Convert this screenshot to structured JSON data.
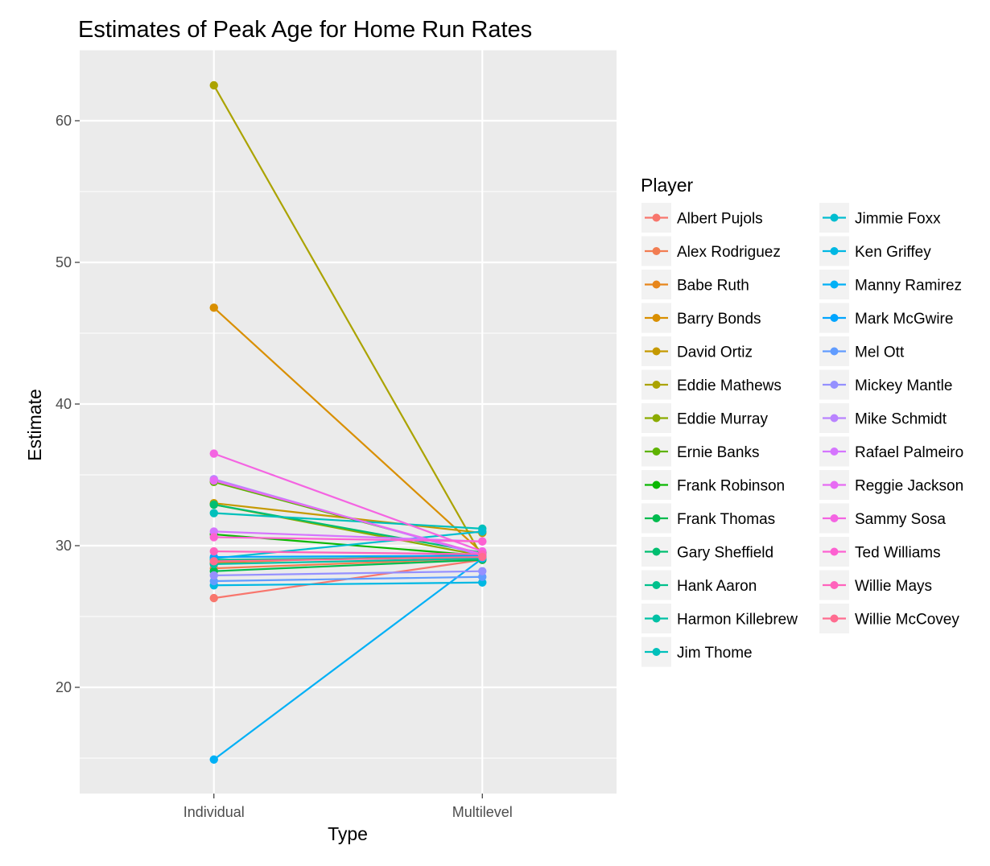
{
  "chart_data": {
    "type": "line",
    "title": "Estimates of Peak Age for Home Run Rates",
    "xlabel": "Type",
    "ylabel": "Estimate",
    "categories": [
      "Individual",
      "Multilevel"
    ],
    "ylim": [
      12.5,
      65
    ],
    "yticks": [
      20,
      30,
      40,
      50,
      60
    ],
    "grid": true,
    "background": "#ebebeb",
    "legend": {
      "title": "Player",
      "placement": "right",
      "columns": 2
    },
    "series": [
      {
        "name": "Albert Pujols",
        "color": "#F8766D",
        "values": [
          26.3,
          29.0
        ]
      },
      {
        "name": "Alex Rodriguez",
        "color": "#F27D52",
        "values": [
          28.4,
          29.1
        ]
      },
      {
        "name": "Babe Ruth",
        "color": "#E7861B",
        "values": [
          28.8,
          29.4
        ]
      },
      {
        "name": "Barry Bonds",
        "color": "#D98F00",
        "values": [
          46.8,
          29.5
        ]
      },
      {
        "name": "David Ortiz",
        "color": "#C59900",
        "values": [
          33.0,
          30.9
        ]
      },
      {
        "name": "Eddie Mathews",
        "color": "#ABA300",
        "values": [
          62.5,
          29.2
        ]
      },
      {
        "name": "Eddie Murray",
        "color": "#8BAB00",
        "values": [
          32.9,
          29.3
        ]
      },
      {
        "name": "Ernie Banks",
        "color": "#5EB300",
        "values": [
          34.5,
          29.4
        ]
      },
      {
        "name": "Frank Robinson",
        "color": "#0BB702",
        "values": [
          30.8,
          29.3
        ]
      },
      {
        "name": "Frank Thomas",
        "color": "#00BB4E",
        "values": [
          28.2,
          29.0
        ]
      },
      {
        "name": "Gary Sheffield",
        "color": "#00BE70",
        "values": [
          32.9,
          29.5
        ]
      },
      {
        "name": "Hank Aaron",
        "color": "#00C08C",
        "values": [
          29.0,
          29.2
        ]
      },
      {
        "name": "Harmon Killebrew",
        "color": "#00C1A5",
        "values": [
          28.7,
          29.1
        ]
      },
      {
        "name": "Jim Thome",
        "color": "#00C0BB",
        "values": [
          32.3,
          31.2
        ]
      },
      {
        "name": "Jimmie Foxx",
        "color": "#00BDD0",
        "values": [
          29.1,
          31.0
        ]
      },
      {
        "name": "Ken Griffey",
        "color": "#00B8E3",
        "values": [
          27.2,
          27.4
        ]
      },
      {
        "name": "Manny Ramirez",
        "color": "#00B0F6",
        "values": [
          14.9,
          29.1
        ]
      },
      {
        "name": "Mark McGwire",
        "color": "#00A5FF",
        "values": [
          29.2,
          29.3
        ]
      },
      {
        "name": "Mel Ott",
        "color": "#619CFF",
        "values": [
          27.5,
          27.8
        ]
      },
      {
        "name": "Mickey Mantle",
        "color": "#9590FF",
        "values": [
          27.9,
          28.2
        ]
      },
      {
        "name": "Mike Schmidt",
        "color": "#B983FF",
        "values": [
          34.7,
          29.3
        ]
      },
      {
        "name": "Rafael Palmeiro",
        "color": "#D575FE",
        "values": [
          31.0,
          30.3
        ]
      },
      {
        "name": "Reggie Jackson",
        "color": "#E76BF3",
        "values": [
          34.6,
          29.4
        ]
      },
      {
        "name": "Sammy Sosa",
        "color": "#F464E2",
        "values": [
          36.5,
          29.6
        ]
      },
      {
        "name": "Ted Williams",
        "color": "#FD61D1",
        "values": [
          30.6,
          30.3
        ]
      },
      {
        "name": "Willie Mays",
        "color": "#FF62BC",
        "values": [
          29.6,
          29.4
        ]
      },
      {
        "name": "Willie McCovey",
        "color": "#FF6C90",
        "values": [
          28.9,
          29.2
        ]
      }
    ]
  }
}
